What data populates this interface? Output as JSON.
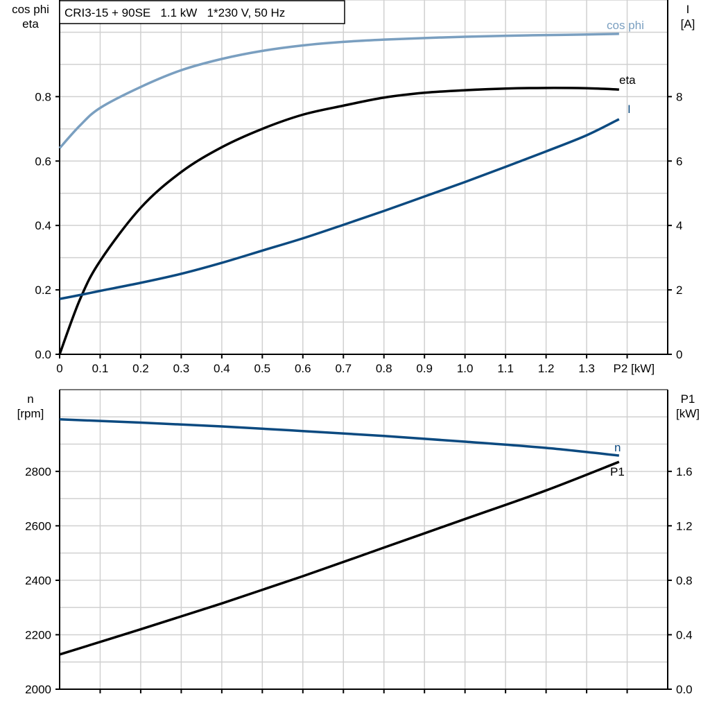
{
  "chart_data": [
    {
      "type": "line",
      "title": "CRI3-15 + 90SE   1.1 kW   1*230 V, 50 Hz",
      "xlabel": "P2 [kW]",
      "xlim": [
        0,
        1.5
      ],
      "x_ticks": [
        "0",
        "0.1",
        "0.2",
        "0.3",
        "0.4",
        "0.5",
        "0.6",
        "0.7",
        "0.8",
        "0.9",
        "1.0",
        "1.1",
        "1.2",
        "1.3"
      ],
      "ylabel_left": [
        "cos phi",
        "eta"
      ],
      "ylim_left": [
        0,
        1.1
      ],
      "y_ticks_left": [
        "0.0",
        "0.2",
        "0.4",
        "0.6",
        "0.8"
      ],
      "ylabel_right": [
        "I",
        "[A]"
      ],
      "ylim_right": [
        0,
        11
      ],
      "y_ticks_right": [
        "0",
        "2",
        "4",
        "6",
        "8"
      ],
      "grid": true,
      "x": [
        0,
        0.05,
        0.1,
        0.2,
        0.3,
        0.4,
        0.5,
        0.6,
        0.7,
        0.8,
        0.9,
        1.0,
        1.1,
        1.2,
        1.3,
        1.38
      ],
      "series": [
        {
          "name": "cos phi",
          "axis": "left",
          "color": "#7a9fc0",
          "values": [
            0.64,
            0.71,
            0.765,
            0.83,
            0.882,
            0.917,
            0.942,
            0.959,
            0.97,
            0.977,
            0.982,
            0.986,
            0.989,
            0.991,
            0.993,
            0.995
          ]
        },
        {
          "name": "eta",
          "axis": "left",
          "color": "#000000",
          "values": [
            0.0,
            0.17,
            0.29,
            0.455,
            0.566,
            0.643,
            0.7,
            0.744,
            0.772,
            0.797,
            0.812,
            0.82,
            0.825,
            0.827,
            0.826,
            0.822
          ]
        },
        {
          "name": "I",
          "axis": "right",
          "color": "#0c4a80",
          "values": [
            1.72,
            1.84,
            1.97,
            2.22,
            2.5,
            2.84,
            3.22,
            3.6,
            4.02,
            4.45,
            4.9,
            5.35,
            5.82,
            6.3,
            6.8,
            7.3
          ]
        }
      ]
    },
    {
      "type": "line",
      "xlim": [
        0,
        1.5
      ],
      "ylabel_left": [
        "n",
        "[rpm]"
      ],
      "ylim_left": [
        2000,
        3100
      ],
      "y_ticks_left": [
        "2000",
        "2200",
        "2400",
        "2600",
        "2800"
      ],
      "ylabel_right": [
        "P1",
        "[kW]"
      ],
      "ylim_right": [
        0,
        2.2
      ],
      "y_ticks_right": [
        "0.0",
        "0.4",
        "0.8",
        "1.2",
        "1.6"
      ],
      "grid": true,
      "x": [
        0,
        0.2,
        0.4,
        0.6,
        0.8,
        1.0,
        1.2,
        1.38
      ],
      "series": [
        {
          "name": "n",
          "axis": "left",
          "color": "#0c4a80",
          "values": [
            2991,
            2979,
            2965,
            2948,
            2930,
            2909,
            2886,
            2858
          ]
        },
        {
          "name": "P1",
          "axis": "right",
          "color": "#000000",
          "values": [
            0.255,
            0.44,
            0.63,
            0.83,
            1.04,
            1.25,
            1.46,
            1.67
          ]
        }
      ]
    }
  ]
}
